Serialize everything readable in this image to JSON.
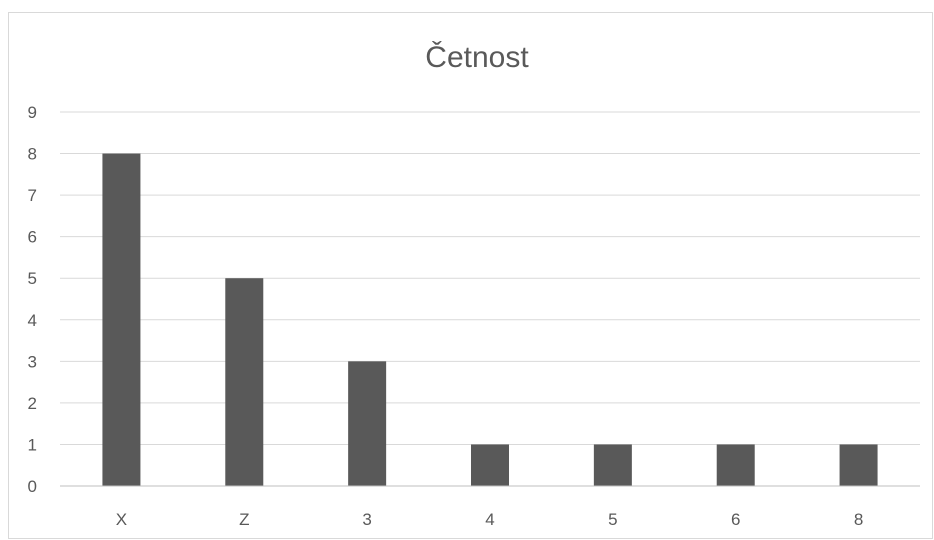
{
  "chart_data": {
    "type": "bar",
    "title": "Četnost",
    "categories": [
      "X",
      "Z",
      "3",
      "4",
      "5",
      "6",
      "8"
    ],
    "series": [
      {
        "values": [
          8,
          5,
          3,
          1,
          1,
          1,
          1
        ]
      }
    ],
    "xlabel": "",
    "ylabel": "",
    "ylim": [
      0,
      9
    ],
    "yticks": [
      0,
      1,
      2,
      3,
      4,
      5,
      6,
      7,
      8,
      9
    ],
    "grid": true,
    "legend": "none",
    "colors": {
      "bar": "#595959",
      "gridline": "#d9d9d9",
      "axis": "#bfbfbf",
      "text": "#595959"
    }
  }
}
